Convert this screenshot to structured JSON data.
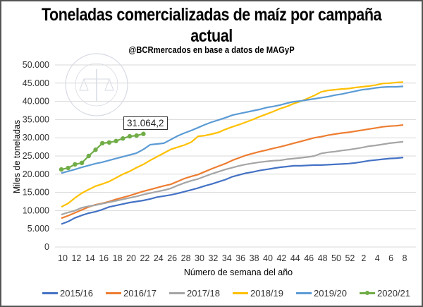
{
  "chart_data": {
    "type": "line",
    "title": "Toneladas comercializadas de maíz por campaña actual",
    "subtitle": "@BCRmercados en base a datos de MAGyP",
    "xlabel": "Número de semana del año",
    "ylabel": "Miles de toneladas",
    "ylim": [
      0,
      50000
    ],
    "yticks": [
      "0",
      "5.000",
      "10.000",
      "15.000",
      "20.000",
      "25.000",
      "30.000",
      "35.000",
      "40.000",
      "45.000",
      "50.000"
    ],
    "ytick_values": [
      0,
      5000,
      10000,
      15000,
      20000,
      25000,
      30000,
      35000,
      40000,
      45000,
      50000
    ],
    "x": [
      10,
      11,
      12,
      13,
      14,
      15,
      16,
      17,
      18,
      19,
      20,
      21,
      22,
      23,
      24,
      25,
      26,
      27,
      28,
      29,
      30,
      31,
      32,
      33,
      34,
      35,
      36,
      37,
      38,
      39,
      40,
      41,
      42,
      43,
      44,
      45,
      46,
      47,
      48,
      49,
      50,
      51,
      52,
      1,
      2,
      3,
      4,
      5,
      6,
      7,
      8
    ],
    "xtick_labels": [
      "10",
      "12",
      "14",
      "16",
      "18",
      "20",
      "22",
      "24",
      "26",
      "28",
      "30",
      "32",
      "34",
      "36",
      "38",
      "40",
      "42",
      "44",
      "46",
      "48",
      "50",
      "52",
      "2",
      "4",
      "6",
      "8"
    ],
    "grid": true,
    "legend_position": "bottom",
    "annotation": {
      "label": "31.064,2",
      "series": "2020/21",
      "x": 22
    },
    "series": [
      {
        "name": "2015/16",
        "color": "#4472C4",
        "values": [
          6300,
          7000,
          8000,
          8700,
          9300,
          9700,
          10300,
          11000,
          11400,
          11800,
          12200,
          12500,
          12800,
          13200,
          13700,
          14000,
          14300,
          14700,
          15200,
          15700,
          16200,
          16800,
          17300,
          17900,
          18500,
          19300,
          19800,
          20300,
          20600,
          21000,
          21300,
          21600,
          21900,
          22100,
          22300,
          22300,
          22400,
          22500,
          22500,
          22600,
          22700,
          22800,
          22900,
          23100,
          23400,
          23700,
          23900,
          24100,
          24300,
          24400,
          24600
        ]
      },
      {
        "name": "2016/17",
        "color": "#ED7D31",
        "values": [
          7900,
          8600,
          9400,
          10200,
          11000,
          11600,
          12000,
          12500,
          13100,
          13600,
          14100,
          14700,
          15300,
          15800,
          16300,
          16800,
          17200,
          18000,
          18800,
          19400,
          19900,
          20700,
          21500,
          22200,
          22900,
          23800,
          24500,
          25200,
          25700,
          26200,
          26600,
          27100,
          27500,
          28000,
          28500,
          29000,
          29500,
          30000,
          30300,
          30700,
          31000,
          31300,
          31500,
          31800,
          32100,
          32400,
          32700,
          33000,
          33200,
          33300,
          33500
        ]
      },
      {
        "name": "2017/18",
        "color": "#A5A5A5",
        "values": [
          8900,
          9500,
          10000,
          10800,
          11200,
          11500,
          11900,
          12300,
          12700,
          13100,
          13500,
          13900,
          14400,
          14800,
          15200,
          15600,
          16100,
          16900,
          17600,
          18200,
          18700,
          19400,
          20100,
          20700,
          21300,
          21800,
          22300,
          22700,
          23000,
          23300,
          23500,
          23700,
          23800,
          24100,
          24300,
          24500,
          24700,
          25000,
          25700,
          26000,
          26200,
          26500,
          26700,
          27000,
          27300,
          27700,
          27900,
          28200,
          28500,
          28700,
          28900
        ]
      },
      {
        "name": "2018/19",
        "color": "#FFC000",
        "values": [
          11000,
          12000,
          13500,
          14800,
          15800,
          16700,
          17300,
          18000,
          19000,
          20000,
          20800,
          21800,
          22700,
          23800,
          24800,
          25800,
          26800,
          27400,
          28000,
          28800,
          30400,
          30600,
          31000,
          31500,
          32300,
          33000,
          33600,
          34300,
          35000,
          35800,
          36500,
          37200,
          38000,
          38600,
          39400,
          40000,
          40800,
          41600,
          42600,
          43000,
          43200,
          43400,
          43500,
          43800,
          44000,
          44200,
          44500,
          44900,
          45000,
          45200,
          45300
        ]
      },
      {
        "name": "2019/20",
        "color": "#5B9BD5",
        "values": [
          20300,
          20800,
          21300,
          21900,
          22400,
          22900,
          23300,
          23800,
          24300,
          24800,
          25300,
          25800,
          26800,
          28100,
          28300,
          28500,
          29500,
          30500,
          31300,
          32000,
          32800,
          33600,
          34300,
          34900,
          35500,
          36200,
          36600,
          37000,
          37400,
          37800,
          38300,
          38600,
          39000,
          39500,
          39900,
          40100,
          40400,
          40700,
          41000,
          41300,
          41700,
          42000,
          42400,
          42800,
          43200,
          43400,
          43700,
          43900,
          44000,
          44000,
          44100
        ]
      },
      {
        "name": "2020/21",
        "color": "#70AD47",
        "markers": true,
        "values": [
          21300,
          21700,
          22700,
          23100,
          25000,
          26700,
          28500,
          28700,
          29100,
          29800,
          30400,
          30600,
          31064.2
        ]
      }
    ]
  }
}
